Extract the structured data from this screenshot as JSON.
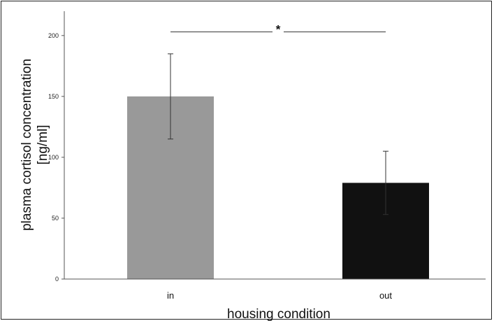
{
  "chart_data": {
    "type": "bar",
    "title": "",
    "categories": [
      "in",
      "out"
    ],
    "values": [
      150,
      79
    ],
    "error": [
      35,
      26
    ],
    "bar_colors": [
      "#999999",
      "#111111"
    ],
    "xlabel": "housing condition",
    "ylabel_lines": [
      "plasma cortisol concentration",
      "[ng/ml]"
    ],
    "ylim": [
      0,
      220
    ],
    "yticks": [
      0,
      50,
      100,
      150,
      200
    ],
    "grid": false,
    "legend": "none",
    "significance": {
      "between": [
        "in",
        "out"
      ],
      "label": "*",
      "y": 203
    }
  }
}
